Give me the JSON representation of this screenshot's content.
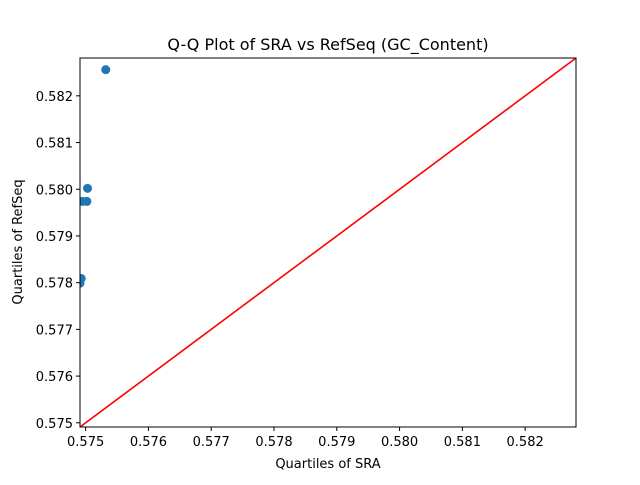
{
  "chart_data": {
    "type": "scatter",
    "title": "Q-Q Plot of SRA vs RefSeq (GC_Content)",
    "xlabel": "Quartiles of SRA",
    "ylabel": "Quartiles of RefSeq",
    "xlim": [
      0.57491,
      0.58281
    ],
    "ylim": [
      0.57491,
      0.58281
    ],
    "xticks": [
      0.575,
      0.576,
      0.577,
      0.578,
      0.579,
      0.58,
      0.581,
      0.582
    ],
    "xtick_labels": [
      "0.575",
      "0.576",
      "0.577",
      "0.578",
      "0.579",
      "0.580",
      "0.581",
      "0.582"
    ],
    "yticks": [
      0.575,
      0.576,
      0.577,
      0.578,
      0.579,
      0.58,
      0.581,
      0.582
    ],
    "ytick_labels": [
      "0.575",
      "0.576",
      "0.577",
      "0.578",
      "0.579",
      "0.580",
      "0.581",
      "0.582"
    ],
    "grid": false,
    "points": [
      {
        "x": 0.57491,
        "y": 0.57799
      },
      {
        "x": 0.57493,
        "y": 0.57809
      },
      {
        "x": 0.57495,
        "y": 0.57974
      },
      {
        "x": 0.57502,
        "y": 0.57974
      },
      {
        "x": 0.57503,
        "y": 0.58002
      },
      {
        "x": 0.57532,
        "y": 0.58256
      }
    ],
    "reference_line": {
      "x": [
        0.57491,
        0.58281
      ],
      "y": [
        0.57491,
        0.58281
      ]
    },
    "colors": {
      "points": "#1f77b4",
      "reference_line": "#ff0000",
      "axes": "#000000"
    }
  }
}
